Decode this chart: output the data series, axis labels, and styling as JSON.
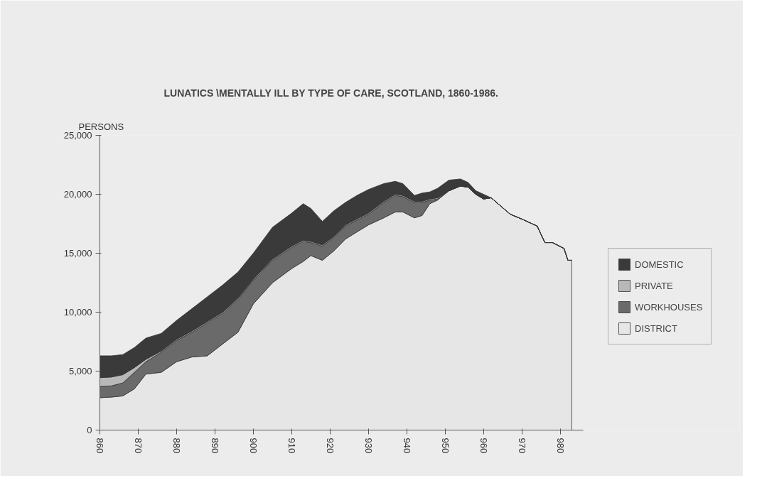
{
  "chart_data": {
    "type": "area",
    "stacked": true,
    "title": "LUNATICS \\MENTALLY  ILL BY TYPE OF CARE, SCOTLAND, 1860-1986.",
    "ylabel": "PERSONS",
    "x": [
      860,
      863,
      866,
      869,
      872,
      876,
      880,
      884,
      888,
      892,
      896,
      900,
      905,
      910,
      913,
      915,
      918,
      921,
      924,
      927,
      930,
      934,
      937,
      939,
      942,
      944,
      946,
      948,
      951,
      954,
      956,
      958,
      960,
      962,
      967,
      970,
      974,
      976,
      978,
      981,
      982,
      983
    ],
    "series": [
      {
        "name": "DISTRICT",
        "color": "#e6e6e6",
        "values": [
          2750,
          2800,
          2900,
          3500,
          4750,
          4900,
          5800,
          6200,
          6300,
          7300,
          8300,
          10700,
          12500,
          13700,
          14300,
          14800,
          14400,
          15200,
          16200,
          16800,
          17400,
          18000,
          18500,
          18500,
          18000,
          18200,
          19200,
          19500,
          20300,
          20700,
          20600,
          20000,
          19600,
          19700,
          18300,
          17900,
          17300,
          15900,
          15900,
          15400,
          14400,
          14400
        ]
      },
      {
        "name": "WORKHOUSES",
        "color": "#6a6a6a",
        "values": [
          950,
          950,
          1100,
          1400,
          1050,
          1700,
          1800,
          2100,
          2800,
          2600,
          2800,
          2000,
          1900,
          1800,
          1700,
          1100,
          1200,
          1100,
          1100,
          1000,
          900,
          1300,
          1400,
          1300,
          1300,
          1100,
          300,
          100,
          0,
          0,
          0,
          0,
          0,
          0,
          0,
          0,
          0,
          0,
          0,
          0,
          0,
          0
        ]
      },
      {
        "name": "PRIVATE",
        "color": "#b8b8b8",
        "values": [
          750,
          750,
          700,
          400,
          200,
          100,
          100,
          100,
          100,
          100,
          100,
          100,
          100,
          100,
          100,
          100,
          100,
          100,
          100,
          100,
          100,
          100,
          100,
          100,
          100,
          100,
          100,
          100,
          0,
          0,
          0,
          0,
          0,
          0,
          0,
          0,
          0,
          0,
          0,
          0,
          0,
          0
        ]
      },
      {
        "name": "DOMESTIC",
        "color": "#3a3a3a",
        "values": [
          1850,
          1800,
          1700,
          1700,
          1800,
          1500,
          1600,
          1900,
          2100,
          2300,
          2200,
          2200,
          2700,
          2800,
          3100,
          2800,
          2000,
          2200,
          1900,
          2000,
          2000,
          1500,
          1100,
          1000,
          500,
          700,
          600,
          800,
          900,
          600,
          400,
          300,
          400,
          0,
          0,
          0,
          0,
          0,
          0,
          0,
          0,
          0
        ]
      }
    ],
    "xlim": [
      860,
      986
    ],
    "xticks": [
      860,
      870,
      880,
      890,
      900,
      910,
      920,
      930,
      940,
      950,
      960,
      970,
      980
    ],
    "ylim": [
      0,
      25000
    ],
    "yticks": [
      0,
      {
        "value": 5000,
        "label": "5,000"
      },
      {
        "value": 10000,
        "label": "10,000"
      },
      {
        "value": 15000,
        "label": "15,000"
      },
      {
        "value": 20000,
        "label": "20,000"
      },
      {
        "value": 25000,
        "label": "25,000"
      }
    ],
    "grid": false,
    "legend": "right"
  }
}
